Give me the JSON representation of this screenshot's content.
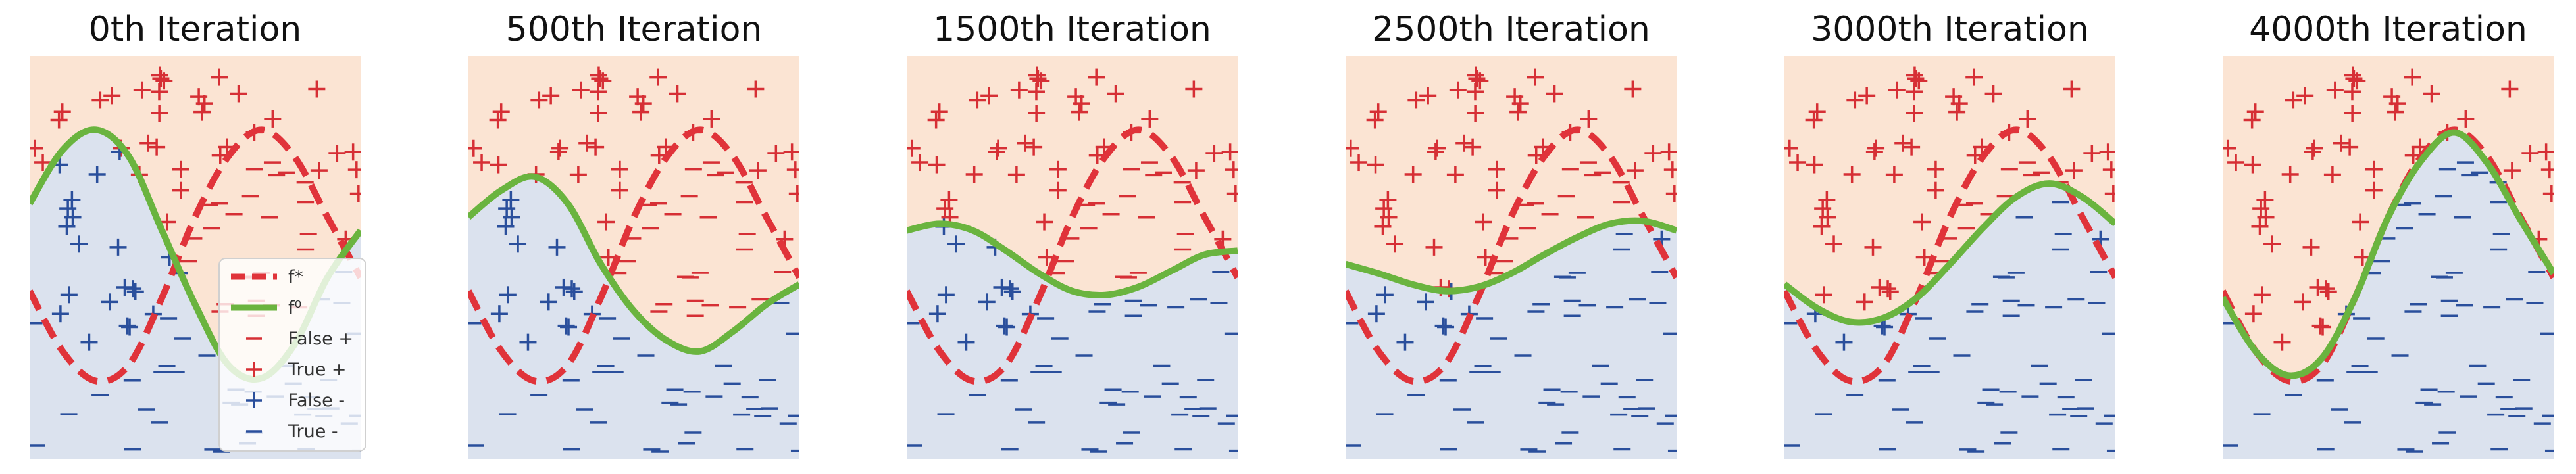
{
  "figure": {
    "panel_titles": [
      "0th Iteration",
      "500th Iteration",
      "1500th Iteration",
      "2500th Iteration",
      "3000th Iteration",
      "4000th Iteration"
    ]
  },
  "colors": {
    "positive_region": "#fbe4d3",
    "negative_region": "#dbe2ee",
    "plus_marker": "#d62f35",
    "minus_marker": "#2a4f9c",
    "target_curve": "#e0333a",
    "learned_curve": "#6ab43f"
  },
  "legend": {
    "entries": [
      {
        "label": "f*",
        "style": "dashed-red"
      },
      {
        "label": "f⁰",
        "style": "solid-green"
      },
      {
        "label": "False +",
        "style": "red-minus"
      },
      {
        "label": "True +",
        "style": "red-plus"
      },
      {
        "label": "False -",
        "style": "blue-plus"
      },
      {
        "label": "True -",
        "style": "blue-minus"
      }
    ],
    "placement": "lower-right of first panel"
  },
  "chart_data": [
    {
      "type": "scatter",
      "title": "0th Iteration",
      "xlim": [
        0,
        1
      ],
      "ylim": [
        -1.5,
        1.5
      ],
      "grid": false,
      "series": [
        {
          "name": "f*",
          "x": [
            0,
            0.1,
            0.2,
            0.3,
            0.4,
            0.5,
            0.6,
            0.7,
            0.8,
            0.9,
            1.0
          ],
          "y": [
            -0.25,
            -0.7,
            -0.92,
            -0.8,
            -0.3,
            0.3,
            0.75,
            0.95,
            0.75,
            0.3,
            -0.15
          ]
        },
        {
          "name": "f⁰",
          "x": [
            0,
            0.1,
            0.2,
            0.3,
            0.4,
            0.5,
            0.6,
            0.7,
            0.8,
            0.9,
            1.0
          ],
          "y": [
            0.4,
            0.8,
            0.95,
            0.75,
            0.2,
            -0.35,
            -0.8,
            -0.9,
            -0.65,
            -0.15,
            0.2
          ]
        }
      ]
    },
    {
      "type": "scatter",
      "title": "500th Iteration",
      "xlim": [
        0,
        1
      ],
      "ylim": [
        -1.5,
        1.5
      ],
      "grid": false,
      "series": [
        {
          "name": "f*",
          "x": [
            0,
            0.1,
            0.2,
            0.3,
            0.4,
            0.5,
            0.6,
            0.7,
            0.8,
            0.9,
            1.0
          ],
          "y": [
            -0.25,
            -0.7,
            -0.92,
            -0.8,
            -0.3,
            0.3,
            0.75,
            0.95,
            0.75,
            0.3,
            -0.15
          ]
        },
        {
          "name": "f⁰",
          "x": [
            0,
            0.1,
            0.2,
            0.3,
            0.4,
            0.5,
            0.6,
            0.7,
            0.8,
            0.9,
            1.0
          ],
          "y": [
            0.3,
            0.5,
            0.6,
            0.4,
            -0.05,
            -0.4,
            -0.62,
            -0.7,
            -0.55,
            -0.35,
            -0.2
          ]
        }
      ]
    },
    {
      "type": "scatter",
      "title": "1500th Iteration",
      "xlim": [
        0,
        1
      ],
      "ylim": [
        -1.5,
        1.5
      ],
      "grid": false,
      "series": [
        {
          "name": "f*",
          "x": [
            0,
            0.1,
            0.2,
            0.3,
            0.4,
            0.5,
            0.6,
            0.7,
            0.8,
            0.9,
            1.0
          ],
          "y": [
            -0.25,
            -0.7,
            -0.92,
            -0.8,
            -0.3,
            0.3,
            0.75,
            0.95,
            0.75,
            0.3,
            -0.15
          ]
        },
        {
          "name": "f⁰",
          "x": [
            0,
            0.1,
            0.2,
            0.3,
            0.4,
            0.5,
            0.6,
            0.7,
            0.8,
            0.9,
            1.0
          ],
          "y": [
            0.2,
            0.25,
            0.2,
            0.05,
            -0.12,
            -0.25,
            -0.28,
            -0.22,
            -0.1,
            0.02,
            0.05
          ]
        }
      ]
    },
    {
      "type": "scatter",
      "title": "2500th Iteration",
      "xlim": [
        0,
        1
      ],
      "ylim": [
        -1.5,
        1.5
      ],
      "grid": false,
      "series": [
        {
          "name": "f*",
          "x": [
            0,
            0.1,
            0.2,
            0.3,
            0.4,
            0.5,
            0.6,
            0.7,
            0.8,
            0.9,
            1.0
          ],
          "y": [
            -0.25,
            -0.7,
            -0.92,
            -0.8,
            -0.3,
            0.3,
            0.75,
            0.95,
            0.75,
            0.3,
            -0.15
          ]
        },
        {
          "name": "f⁰",
          "x": [
            0,
            0.1,
            0.2,
            0.3,
            0.4,
            0.5,
            0.6,
            0.7,
            0.8,
            0.9,
            1.0
          ],
          "y": [
            -0.05,
            -0.12,
            -0.2,
            -0.25,
            -0.22,
            -0.12,
            0.02,
            0.15,
            0.25,
            0.27,
            0.2
          ]
        }
      ]
    },
    {
      "type": "scatter",
      "title": "3000th Iteration",
      "xlim": [
        0,
        1
      ],
      "ylim": [
        -1.5,
        1.5
      ],
      "grid": false,
      "series": [
        {
          "name": "f*",
          "x": [
            0,
            0.1,
            0.2,
            0.3,
            0.4,
            0.5,
            0.6,
            0.7,
            0.8,
            0.9,
            1.0
          ],
          "y": [
            -0.25,
            -0.7,
            -0.92,
            -0.8,
            -0.3,
            0.3,
            0.75,
            0.95,
            0.75,
            0.3,
            -0.15
          ]
        },
        {
          "name": "f⁰",
          "x": [
            0,
            0.1,
            0.2,
            0.3,
            0.4,
            0.5,
            0.6,
            0.7,
            0.8,
            0.9,
            1.0
          ],
          "y": [
            -0.2,
            -0.38,
            -0.48,
            -0.45,
            -0.3,
            -0.05,
            0.22,
            0.45,
            0.55,
            0.45,
            0.25
          ]
        }
      ]
    },
    {
      "type": "scatter",
      "title": "4000th Iteration",
      "xlim": [
        0,
        1
      ],
      "ylim": [
        -1.5,
        1.5
      ],
      "grid": false,
      "series": [
        {
          "name": "f*",
          "x": [
            0,
            0.1,
            0.2,
            0.3,
            0.4,
            0.5,
            0.6,
            0.7,
            0.8,
            0.9,
            1.0
          ],
          "y": [
            -0.25,
            -0.7,
            -0.92,
            -0.8,
            -0.3,
            0.3,
            0.75,
            0.95,
            0.75,
            0.3,
            -0.15
          ]
        },
        {
          "name": "f⁰",
          "x": [
            0,
            0.1,
            0.2,
            0.3,
            0.4,
            0.5,
            0.6,
            0.7,
            0.8,
            0.9,
            1.0
          ],
          "y": [
            -0.3,
            -0.7,
            -0.88,
            -0.75,
            -0.3,
            0.3,
            0.72,
            0.93,
            0.7,
            0.28,
            -0.12
          ]
        }
      ]
    }
  ]
}
